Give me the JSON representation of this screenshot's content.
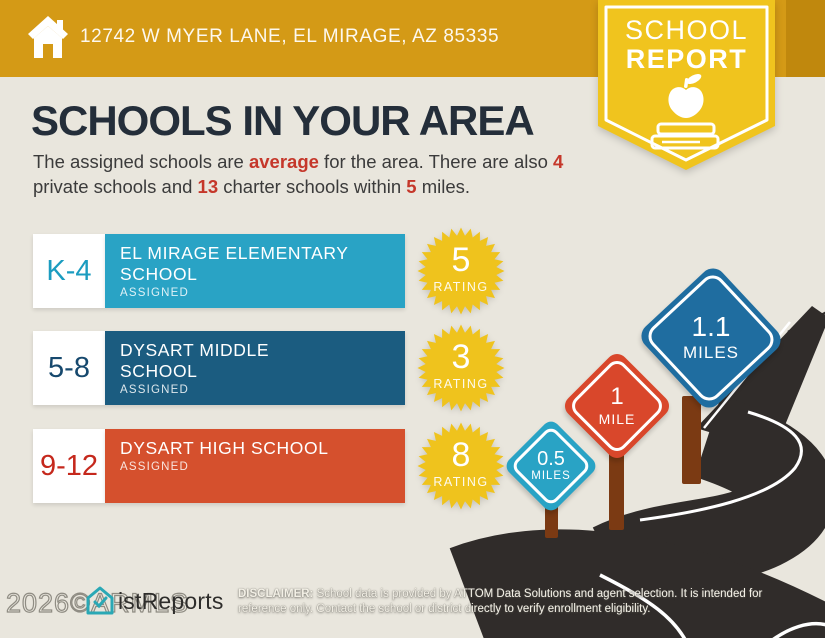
{
  "header": {
    "address": "12742 W MYER LANE, EL MIRAGE, AZ 85335"
  },
  "badge": {
    "line1": "SCHOOL",
    "line2": "REPORT"
  },
  "intro": {
    "title": "SCHOOLS IN YOUR AREA",
    "s0": "The assigned schools are ",
    "s1": "average",
    "s2": " for the area. There are also ",
    "s3": "4",
    "s4": " private schools and ",
    "s5": "13",
    "s6": " charter schools within ",
    "s7": "5",
    "s8": " miles."
  },
  "schools": [
    {
      "grades": "K-4",
      "name": "EL MIRAGE ELEMENTARY SCHOOL",
      "status": "ASSIGNED",
      "rating": "5",
      "rating_label": "RATING"
    },
    {
      "grades": "5-8",
      "name": "DYSART MIDDLE SCHOOL",
      "status": "ASSIGNED",
      "rating": "3",
      "rating_label": "RATING"
    },
    {
      "grades": "9-12",
      "name": "DYSART HIGH SCHOOL",
      "status": "ASSIGNED",
      "rating": "8",
      "rating_label": "RATING"
    }
  ],
  "signs": [
    {
      "value": "0.5",
      "unit": "MILES"
    },
    {
      "value": "1",
      "unit": "MILE"
    },
    {
      "value": "1.1",
      "unit": "MILES"
    }
  ],
  "footer": {
    "watermark": "2026©ARMLS",
    "logo_text": "istReports",
    "disclaimer_label": "DISCLAIMER:",
    "disclaimer_text": " School data is provided by ATTOM Data Solutions and agent selection. It is intended for reference only. Contact the school or district directly to verify enrollment eligibility."
  },
  "theme": {
    "header_gold": "#d49a16",
    "badge_yellow": "#f0c41e",
    "background_beige": "#e9e6dd",
    "title_navy": "#242e3a",
    "accent_red": "#c5372a",
    "elementary_teal": "#29a3c5",
    "middle_blue": "#1b5c80",
    "high_red": "#d5502d",
    "star_yellow": "#efc31d",
    "sign_blue": "#1f6da0",
    "road_dark": "#302c2a",
    "post_brown": "#7b3a13",
    "logo_teal": "#2aa8b5"
  }
}
